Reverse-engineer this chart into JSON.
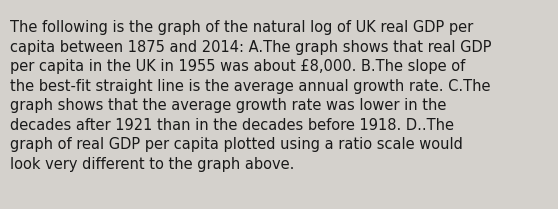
{
  "text_lines": [
    "The following is the graph of the natural log of UK real GDP per",
    "capita between 1875 and 2014: A.The graph shows that real GDP",
    "per capita in the UK in 1955 was about £8,000. B.The slope of",
    "the best-fit straight line is the average annual growth rate. C.The",
    "graph shows that the average growth rate was lower in the",
    "decades after 1921 than in the decades before 1918. D..The",
    "graph of real GDP per capita plotted using a ratio scale would",
    "look very different to the graph above."
  ],
  "background_color": "#d4d1cc",
  "text_color": "#1a1a1a",
  "font_size": 10.5,
  "fig_width": 5.58,
  "fig_height": 2.09,
  "dpi": 100
}
